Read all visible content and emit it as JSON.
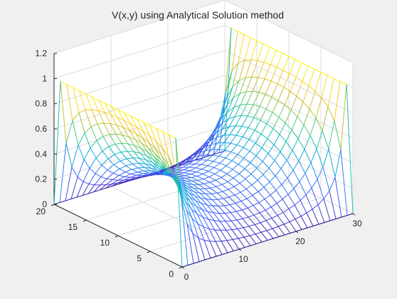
{
  "chart_data": {
    "type": "mesh",
    "title": "V(x,y) using Analytical Solution method",
    "xlabel": "",
    "ylabel": "",
    "zlabel": "",
    "xlim": [
      0,
      30
    ],
    "ylim": [
      0,
      20
    ],
    "zlim": [
      0,
      1.2
    ],
    "x_grid_lines": 31,
    "y_grid_lines": 21,
    "grid": true,
    "colormap": "parula",
    "surface": "V(x,y) = 1 on edges x=0 and x=30, 0 on edges y=0 and y=20; Laplace analytical solution",
    "x_ticks": [
      "0",
      "10",
      "20",
      "30"
    ],
    "y_ticks": [
      "0",
      "5",
      "10",
      "15",
      "20"
    ],
    "z_ticks": [
      "0",
      "0.2",
      "0.4",
      "0.6",
      "0.8",
      "1",
      "1.2"
    ]
  }
}
